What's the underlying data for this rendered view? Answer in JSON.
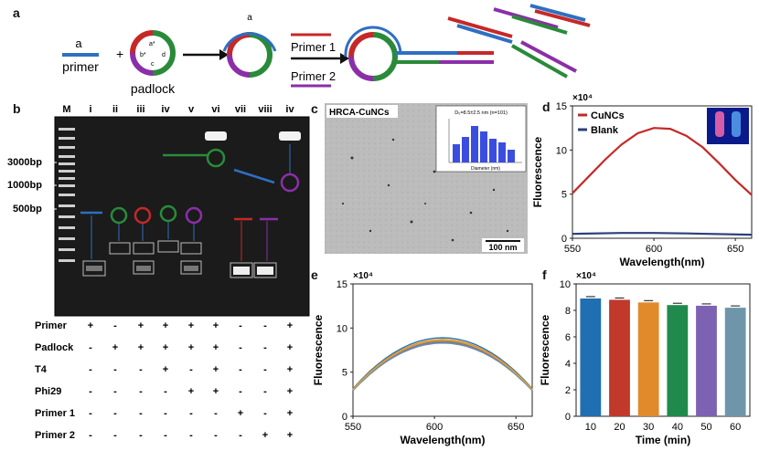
{
  "panel_letters": {
    "a": "a",
    "b": "b",
    "c": "c",
    "d": "d",
    "e": "e",
    "f": "f"
  },
  "schematic": {
    "primer_top": "a",
    "primer_bottom": "primer",
    "plus": "+",
    "padlock_label": "padlock",
    "padlock_marks": [
      "a*",
      "b*",
      "c",
      "d"
    ],
    "ring_a": "a",
    "primer1": "Primer 1",
    "primer2": "Primer 2",
    "product_marks": [
      "a*",
      "b*",
      "c",
      "d"
    ]
  },
  "gel": {
    "lanes": [
      "M",
      "i",
      "ii",
      "iii",
      "iv",
      "v",
      "vi",
      "vii",
      "viii",
      "iv"
    ],
    "ladder": [
      "3000bp",
      "1000bp",
      "500bp"
    ],
    "rows": [
      {
        "label": "Primer",
        "values": [
          "+",
          "-",
          "+",
          "+",
          "+",
          "+",
          "-",
          "-",
          "+"
        ]
      },
      {
        "label": "Padlock",
        "values": [
          "-",
          "+",
          "+",
          "+",
          "+",
          "+",
          "-",
          "-",
          "+"
        ]
      },
      {
        "label": "T4",
        "values": [
          "-",
          "-",
          "-",
          "+",
          "-",
          "+",
          "-",
          "-",
          "+"
        ]
      },
      {
        "label": "Phi29",
        "values": [
          "-",
          "-",
          "-",
          "-",
          "+",
          "+",
          "-",
          "-",
          "+"
        ]
      },
      {
        "label": "Primer 1",
        "values": [
          "-",
          "-",
          "-",
          "-",
          "-",
          "-",
          "+",
          "-",
          "+"
        ]
      },
      {
        "label": "Primer 2",
        "values": [
          "-",
          "-",
          "-",
          "-",
          "-",
          "-",
          "-",
          "+",
          "+"
        ]
      }
    ]
  },
  "tem": {
    "title": "HRCA-CuNCs",
    "scale_bar": "100 nm",
    "inset_title": "D₀=8.5±2.5 nm (n=101)",
    "inset_xlabel": "Diameter (nm)"
  },
  "chart_data": [
    {
      "panel": "d",
      "type": "line",
      "ylabel": "Fluorescence",
      "xlabel": "Wavelength(nm)",
      "y_multiplier": "×10⁴",
      "xlim": [
        550,
        660
      ],
      "ylim": [
        0,
        15
      ],
      "xticks": [
        "550",
        "600",
        "650"
      ],
      "yticks": [
        "0",
        "5",
        "10",
        "15"
      ],
      "legend": "top-left",
      "series": [
        {
          "name": "CuNCs",
          "color": "#c62828",
          "x": [
            550,
            560,
            570,
            580,
            590,
            600,
            610,
            620,
            630,
            640,
            650,
            660
          ],
          "y": [
            5.1,
            7.0,
            8.9,
            10.6,
            11.9,
            12.5,
            12.4,
            11.6,
            10.3,
            8.5,
            6.6,
            4.9
          ]
        },
        {
          "name": "Blank",
          "color": "#2b3f7a",
          "x": [
            550,
            580,
            600,
            620,
            660
          ],
          "y": [
            0.5,
            0.6,
            0.6,
            0.55,
            0.4
          ]
        }
      ]
    },
    {
      "panel": "e",
      "type": "line",
      "ylabel": "Fluorescence",
      "xlabel": "Wavelength(nm)",
      "y_multiplier": "×10⁴",
      "xlim": [
        550,
        660
      ],
      "ylim": [
        0,
        15
      ],
      "xticks": [
        "550",
        "600",
        "650"
      ],
      "yticks": [
        "0",
        "5",
        "10",
        "15"
      ],
      "series": [
        {
          "color": "#1f77b4",
          "peak": 8.9
        },
        {
          "color": "#ff7f0e",
          "peak": 8.7
        },
        {
          "color": "#2ca02c",
          "peak": 8.5
        },
        {
          "color": "#9467bd",
          "peak": 8.4
        },
        {
          "color": "#6c8ea3",
          "peak": 8.3
        },
        {
          "color": "#d9a441",
          "peak": 8.6
        }
      ]
    },
    {
      "panel": "f",
      "type": "bar",
      "ylabel": "Fluorescence",
      "xlabel": "Time (min)",
      "y_multiplier": "×10⁴",
      "ylim": [
        0,
        10
      ],
      "yticks": [
        "0",
        "2",
        "4",
        "6",
        "8",
        "10"
      ],
      "categories": [
        "10",
        "20",
        "30",
        "40",
        "50",
        "60"
      ],
      "values": [
        8.9,
        8.8,
        8.6,
        8.4,
        8.35,
        8.2
      ],
      "colors": [
        "#1f6fb2",
        "#c0392b",
        "#e08a2c",
        "#1f8a4c",
        "#7d62b3",
        "#6f95aa"
      ]
    }
  ]
}
